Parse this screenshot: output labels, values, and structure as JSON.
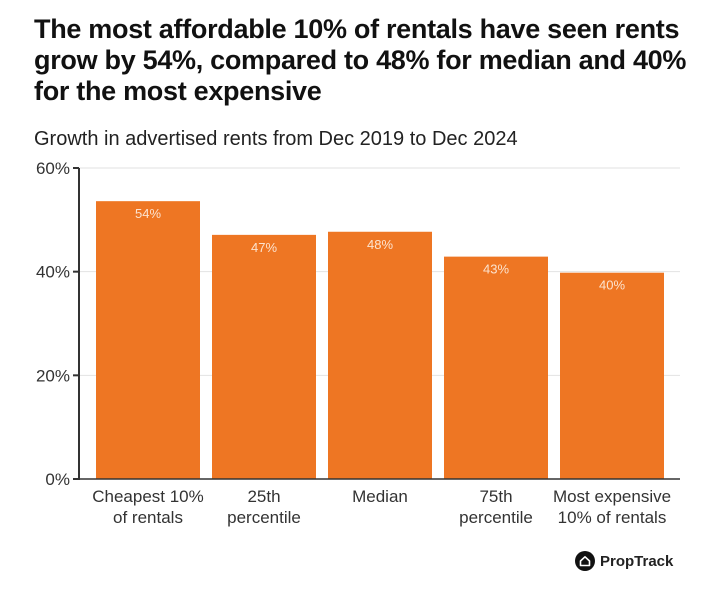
{
  "chart_data": {
    "type": "bar",
    "title": "The most affordable 10% of rentals have seen rents grow by 54%, compared to 48% for median and 40% for the most expensive",
    "subtitle": "Growth in advertised rents from Dec 2019 to Dec 2024",
    "categories": [
      [
        "Cheapest 10%",
        "of rentals"
      ],
      [
        "25th",
        "percentile"
      ],
      [
        "Median"
      ],
      [
        "75th",
        "percentile"
      ],
      [
        "Most expensive",
        "10% of rentals"
      ]
    ],
    "values": [
      53.6,
      47.1,
      47.7,
      42.9,
      39.8
    ],
    "data_labels": [
      "54%",
      "47%",
      "48%",
      "43%",
      "40%"
    ],
    "ylim": [
      0,
      60
    ],
    "yticks": [
      0,
      20,
      40,
      60
    ],
    "ytick_labels": [
      "0%",
      "20%",
      "40%",
      "60%"
    ],
    "grid": true,
    "bar_color": "#EE7623",
    "label_color": "#FCE3CF"
  },
  "brand": {
    "name": "PropTrack",
    "icon": "house-icon"
  }
}
